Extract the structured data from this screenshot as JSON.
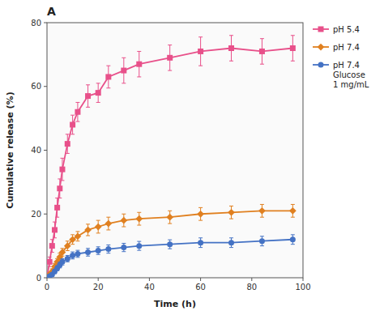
{
  "chart_data": {
    "type": "line",
    "title": "A",
    "xlabel": "Time (h)",
    "ylabel": "Cumulative release (%)",
    "xlim": [
      0,
      100
    ],
    "ylim": [
      0,
      80
    ],
    "xticks": [
      0,
      20,
      40,
      60,
      80,
      100
    ],
    "yticks": [
      0,
      20,
      40,
      60,
      80
    ],
    "grid": false,
    "legend": "right",
    "x": [
      0,
      1,
      2,
      3,
      4,
      5,
      6,
      8,
      10,
      12,
      16,
      20,
      24,
      30,
      36,
      48,
      60,
      72,
      84,
      96
    ],
    "series": [
      {
        "name": "pH 5.4",
        "color": "#e8508a",
        "marker": "square",
        "values": [
          0,
          5,
          10,
          15,
          22,
          28,
          34,
          42,
          48,
          52,
          57,
          58,
          63,
          65,
          67,
          69,
          71,
          72,
          71,
          72
        ],
        "errors": [
          0,
          1.5,
          2,
          2.5,
          3,
          3,
          3.5,
          3,
          3,
          3,
          3.5,
          3,
          3.5,
          4,
          4,
          4,
          4.5,
          4,
          4,
          4
        ]
      },
      {
        "name": "pH 7.4",
        "color": "#e08020",
        "marker": "diamond",
        "values": [
          0,
          1,
          2,
          3.5,
          5,
          6.5,
          8,
          10,
          12,
          13,
          15,
          16,
          17,
          18,
          18.5,
          19,
          20,
          20.5,
          21,
          21
        ],
        "errors": [
          0,
          0.5,
          0.8,
          1,
          1,
          1.2,
          1.2,
          1.5,
          1.5,
          1.5,
          1.8,
          2,
          2,
          2,
          2,
          2,
          2,
          2,
          2,
          2
        ]
      },
      {
        "name": "pH 7.4\nGlucose\n1 mg/mL",
        "color": "#4472c4",
        "marker": "circle",
        "values": [
          0,
          0.5,
          1,
          2,
          3,
          4,
          5,
          6,
          7,
          7.5,
          8,
          8.5,
          9,
          9.5,
          10,
          10.5,
          11,
          11,
          11.5,
          12
        ],
        "errors": [
          0,
          0.3,
          0.5,
          0.7,
          0.8,
          0.9,
          1,
          1,
          1.1,
          1.1,
          1.2,
          1.2,
          1.3,
          1.3,
          1.4,
          1.4,
          1.5,
          1.5,
          1.5,
          1.5
        ]
      }
    ]
  }
}
